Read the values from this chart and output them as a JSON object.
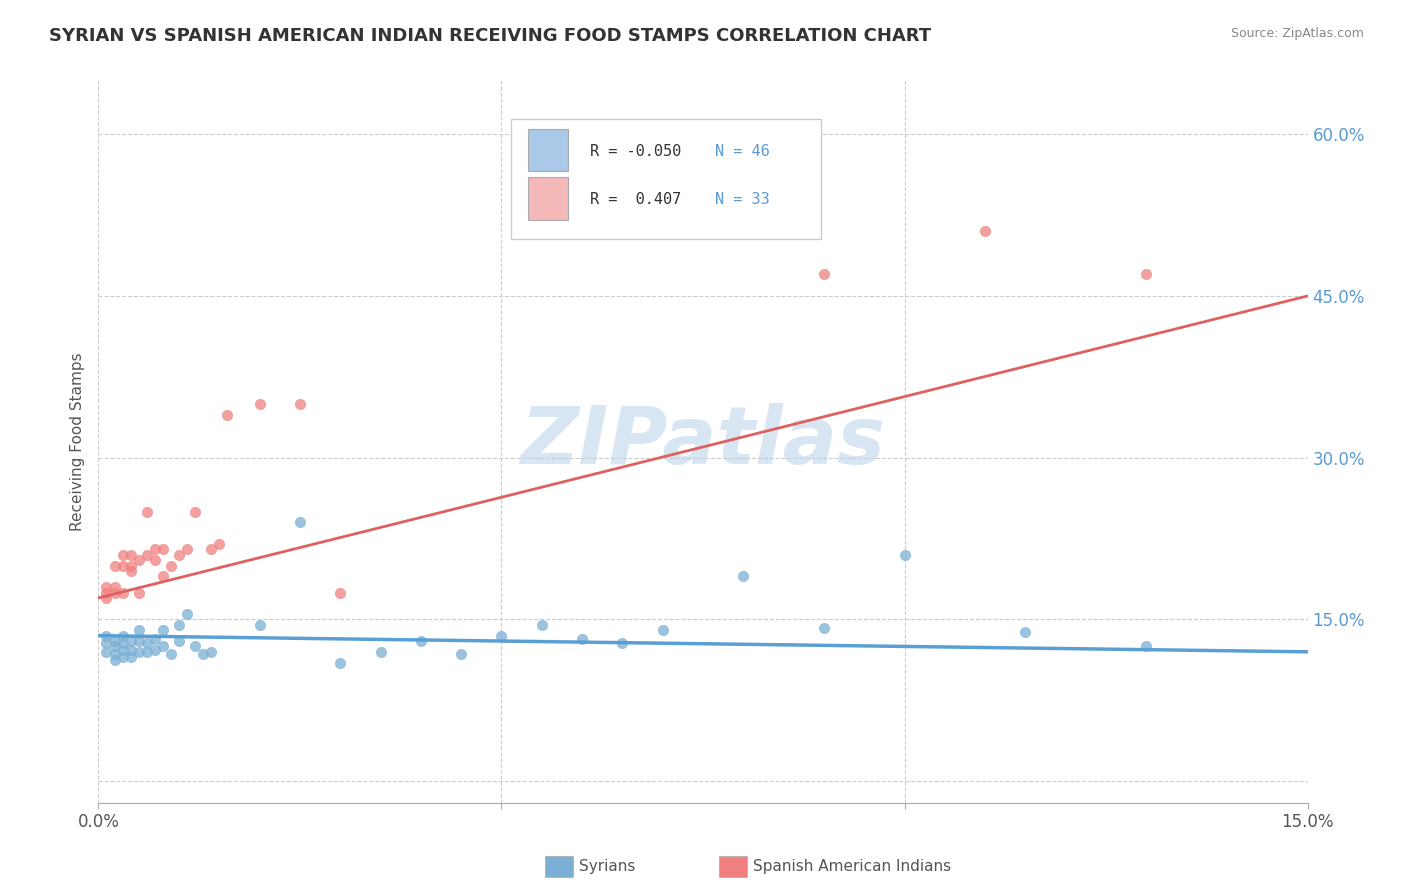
{
  "title": "SYRIAN VS SPANISH AMERICAN INDIAN RECEIVING FOOD STAMPS CORRELATION CHART",
  "source": "Source: ZipAtlas.com",
  "ylabel": "Receiving Food Stamps",
  "watermark": "ZIPatlas",
  "xmin": 0.0,
  "xmax": 0.15,
  "ymin": -0.02,
  "ymax": 0.65,
  "xtick_positions": [
    0.0,
    0.15
  ],
  "xtick_labels": [
    "0.0%",
    "15.0%"
  ],
  "ytick_positions": [
    0.0,
    0.15,
    0.3,
    0.45,
    0.6
  ],
  "ytick_labels": [
    "",
    "15.0%",
    "30.0%",
    "45.0%",
    "60.0%"
  ],
  "bottom_legend": [
    "Syrians",
    "Spanish American Indians"
  ],
  "syrians_color": "#7bafd4",
  "syrians_color_light": "#aac8e8",
  "spanish_color": "#f08080",
  "spanish_color_light": "#f4b8b8",
  "trend_syrian_color": "#5a9fd4",
  "trend_spanish_color": "#e06060",
  "background_color": "#ffffff",
  "grid_color": "#cccccc",
  "legend_box_color": "#aac8e8",
  "legend_box_color2": "#f4b8b8",
  "syrians_x": [
    0.001,
    0.001,
    0.001,
    0.002,
    0.002,
    0.002,
    0.002,
    0.003,
    0.003,
    0.003,
    0.003,
    0.004,
    0.004,
    0.004,
    0.005,
    0.005,
    0.005,
    0.006,
    0.006,
    0.007,
    0.007,
    0.008,
    0.008,
    0.009,
    0.01,
    0.01,
    0.011,
    0.012,
    0.013,
    0.014,
    0.02,
    0.025,
    0.03,
    0.035,
    0.04,
    0.045,
    0.05,
    0.055,
    0.06,
    0.065,
    0.07,
    0.08,
    0.09,
    0.1,
    0.115,
    0.13
  ],
  "syrians_y": [
    0.135,
    0.128,
    0.12,
    0.13,
    0.125,
    0.118,
    0.112,
    0.135,
    0.128,
    0.122,
    0.115,
    0.13,
    0.122,
    0.115,
    0.14,
    0.13,
    0.12,
    0.128,
    0.12,
    0.132,
    0.122,
    0.14,
    0.125,
    0.118,
    0.145,
    0.13,
    0.155,
    0.125,
    0.118,
    0.12,
    0.145,
    0.24,
    0.11,
    0.12,
    0.13,
    0.118,
    0.135,
    0.145,
    0.132,
    0.128,
    0.14,
    0.19,
    0.142,
    0.21,
    0.138,
    0.125
  ],
  "spanish_x": [
    0.001,
    0.001,
    0.001,
    0.002,
    0.002,
    0.002,
    0.003,
    0.003,
    0.003,
    0.004,
    0.004,
    0.004,
    0.005,
    0.005,
    0.006,
    0.006,
    0.007,
    0.007,
    0.008,
    0.008,
    0.009,
    0.01,
    0.011,
    0.012,
    0.014,
    0.015,
    0.016,
    0.02,
    0.025,
    0.03,
    0.09,
    0.11,
    0.13
  ],
  "spanish_y": [
    0.17,
    0.175,
    0.18,
    0.18,
    0.2,
    0.175,
    0.2,
    0.21,
    0.175,
    0.195,
    0.21,
    0.2,
    0.175,
    0.205,
    0.25,
    0.21,
    0.215,
    0.205,
    0.215,
    0.19,
    0.2,
    0.21,
    0.215,
    0.25,
    0.215,
    0.22,
    0.34,
    0.35,
    0.35,
    0.175,
    0.47,
    0.51,
    0.47
  ]
}
